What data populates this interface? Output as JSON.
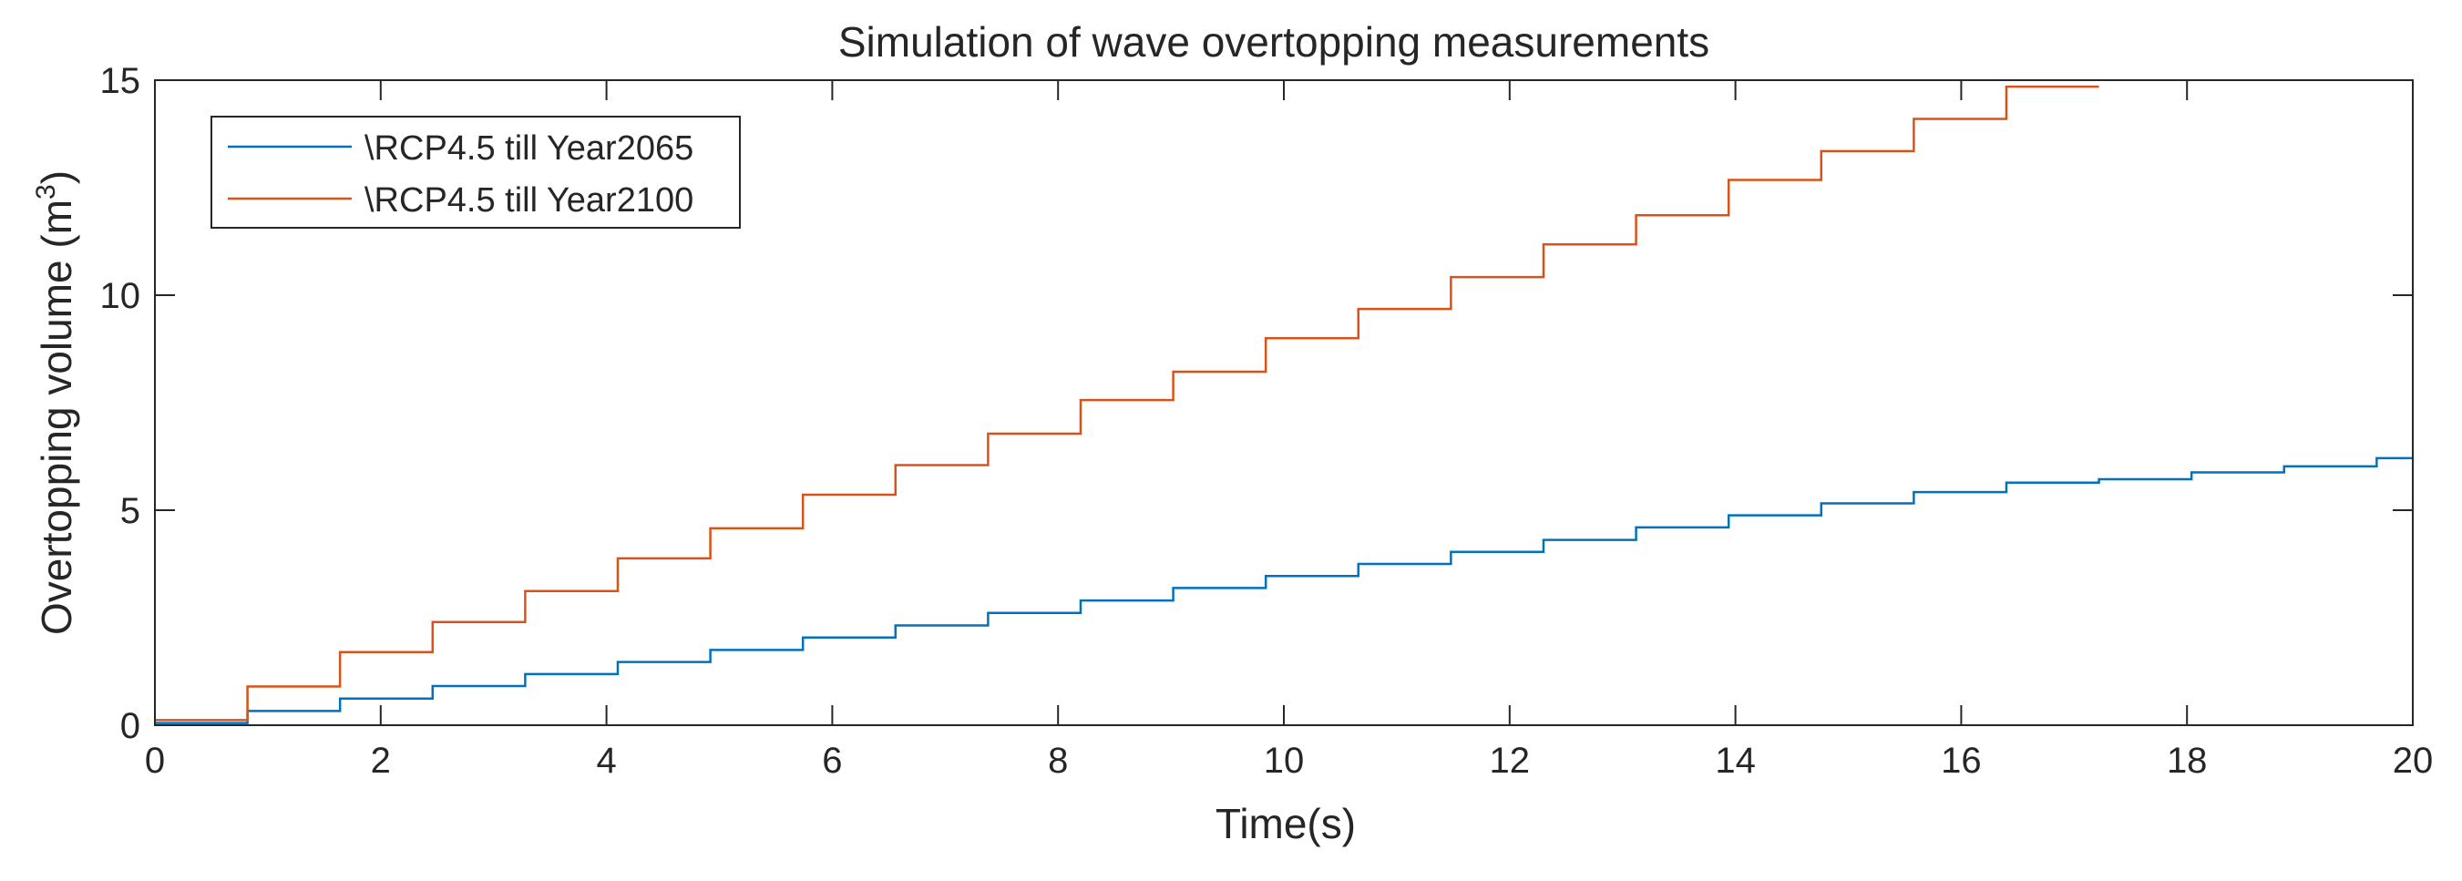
{
  "chart_data": {
    "type": "line",
    "title": "Simulation of wave overtopping measurements",
    "xlabel": "Time(s)",
    "ylabel": "Overtopping volume (m",
    "ylabel_superscript": "3",
    "ylabel_suffix": ")",
    "xlim": [
      0,
      20
    ],
    "ylim": [
      0,
      15
    ],
    "xticks": [
      0,
      2,
      4,
      6,
      8,
      10,
      12,
      14,
      16,
      18,
      20
    ],
    "xtick_labels": [
      "0",
      "2",
      "4",
      "6",
      "8",
      "10",
      "12",
      "14",
      "16",
      "18",
      "20"
    ],
    "yticks": [
      0,
      5,
      10,
      15
    ],
    "ytick_labels": [
      "0",
      "5",
      "10",
      "15"
    ],
    "grid": false,
    "legend_position": "top-left",
    "step_interval": 0.82,
    "series": [
      {
        "name": "\\RCP4.5 till Year2065",
        "color": "#0072BD",
        "step": true,
        "values": [
          0.05,
          0.33,
          0.62,
          0.91,
          1.19,
          1.47,
          1.75,
          2.04,
          2.32,
          2.61,
          2.9,
          3.19,
          3.47,
          3.75,
          4.03,
          4.31,
          4.6,
          4.88,
          5.16,
          5.42,
          5.64,
          5.72,
          5.88,
          6.02,
          6.21
        ]
      },
      {
        "name": "\\RCP4.5 till Year2100",
        "color": "#D95319",
        "step": true,
        "values": [
          0.12,
          0.9,
          1.7,
          2.4,
          3.12,
          3.88,
          4.58,
          5.36,
          6.05,
          6.78,
          7.56,
          8.22,
          9.0,
          9.68,
          10.42,
          11.18,
          11.86,
          12.68,
          13.35,
          14.1,
          14.85
        ]
      }
    ]
  }
}
